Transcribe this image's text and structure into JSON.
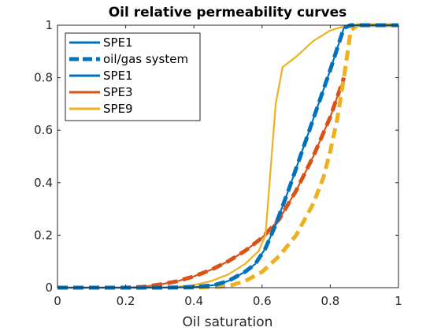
{
  "chart_data": {
    "type": "line",
    "title": "Oil relative permeability curves",
    "xlabel": "Oil saturation",
    "ylabel": "",
    "xlim": [
      0,
      1
    ],
    "ylim": [
      0,
      1
    ],
    "xticks": [
      "0",
      "0.2",
      "0.4",
      "0.6",
      "0.8",
      "1"
    ],
    "yticks": [
      "0",
      "0.2",
      "0.4",
      "0.6",
      "0.8",
      "1"
    ],
    "grid": false,
    "legend_position": "top-left",
    "legend": [
      "SPE1",
      "oil/gas system",
      "SPE1",
      "SPE3",
      "SPE9"
    ],
    "series": [
      {
        "name": "SPE1",
        "color": "#0072BD",
        "dash": "solid",
        "x": [
          0,
          0.3,
          0.4,
          0.46,
          0.5,
          0.55,
          0.58,
          0.61,
          0.64,
          0.68,
          0.72,
          0.76,
          0.8,
          0.84,
          0.86,
          1.0
        ],
        "y": [
          0,
          0,
          0.002,
          0.01,
          0.025,
          0.06,
          0.09,
          0.15,
          0.24,
          0.38,
          0.53,
          0.68,
          0.83,
          0.99,
          1.0,
          1.0
        ]
      },
      {
        "name": "SPE1",
        "color": "#0072BD",
        "dash": "dashed",
        "x": [
          0,
          0.3,
          0.4,
          0.46,
          0.5,
          0.55,
          0.58,
          0.61,
          0.64,
          0.68,
          0.72,
          0.76,
          0.8,
          0.84,
          0.86,
          1.0
        ],
        "y": [
          0,
          0,
          0.002,
          0.01,
          0.025,
          0.06,
          0.09,
          0.15,
          0.24,
          0.38,
          0.53,
          0.68,
          0.83,
          0.99,
          1.0,
          1.0
        ]
      },
      {
        "name": "SPE3",
        "color": "#D95319",
        "dash": "solid",
        "x": [
          0,
          0.2,
          0.25,
          0.3,
          0.35,
          0.4,
          0.45,
          0.5,
          0.55,
          0.6,
          0.65,
          0.7,
          0.75,
          0.8,
          0.84
        ],
        "y": [
          0,
          0,
          0.003,
          0.012,
          0.024,
          0.043,
          0.068,
          0.1,
          0.14,
          0.19,
          0.26,
          0.37,
          0.5,
          0.65,
          0.8
        ]
      },
      {
        "name": "SPE3",
        "color": "#D95319",
        "dash": "dashed",
        "x": [
          0,
          0.2,
          0.25,
          0.3,
          0.35,
          0.4,
          0.45,
          0.5,
          0.55,
          0.6,
          0.65,
          0.7,
          0.75,
          0.8,
          0.84
        ],
        "y": [
          0,
          0,
          0.003,
          0.012,
          0.024,
          0.043,
          0.068,
          0.1,
          0.14,
          0.19,
          0.26,
          0.37,
          0.5,
          0.65,
          0.8
        ]
      },
      {
        "name": "SPE9",
        "color": "#EDB120",
        "dash": "solid",
        "x": [
          0,
          0.28,
          0.35,
          0.4,
          0.45,
          0.5,
          0.55,
          0.59,
          0.61,
          0.64,
          0.66,
          0.7,
          0.75,
          0.8,
          0.85,
          0.88,
          1.0
        ],
        "y": [
          0,
          0,
          0.003,
          0.01,
          0.025,
          0.05,
          0.09,
          0.14,
          0.2,
          0.7,
          0.84,
          0.88,
          0.94,
          0.98,
          1.0,
          1.0,
          1.0
        ]
      },
      {
        "name": "SPE9",
        "color": "#EDB120",
        "dash": "dashed",
        "x": [
          0,
          0.4,
          0.5,
          0.55,
          0.6,
          0.65,
          0.7,
          0.75,
          0.78,
          0.8,
          0.82,
          0.84,
          0.86,
          0.88,
          1.0
        ],
        "y": [
          0,
          0,
          0.005,
          0.025,
          0.06,
          0.12,
          0.2,
          0.32,
          0.42,
          0.52,
          0.64,
          0.8,
          0.98,
          1.0,
          1.0
        ]
      }
    ]
  }
}
